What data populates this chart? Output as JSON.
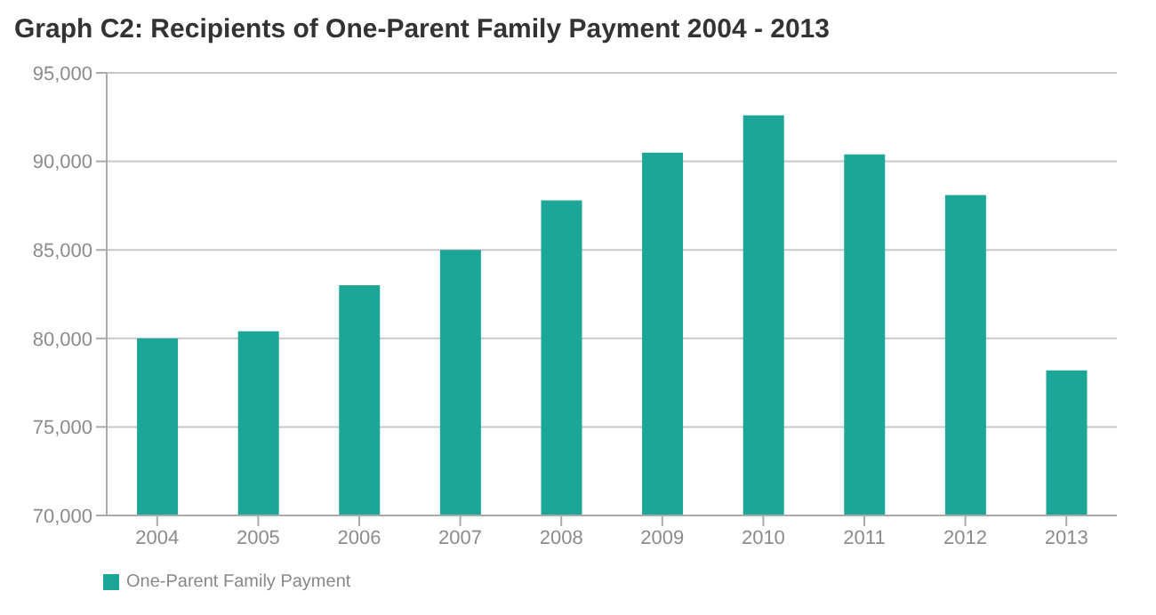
{
  "chart_data": {
    "type": "bar",
    "title": "Graph C2: Recipients of One-Parent Family Payment 2004 - 2013",
    "categories": [
      "2004",
      "2005",
      "2006",
      "2007",
      "2008",
      "2009",
      "2010",
      "2011",
      "2012",
      "2013"
    ],
    "series": [
      {
        "name": "One-Parent Family Payment",
        "color": "#1ba698",
        "values": [
          80000,
          80400,
          83000,
          85000,
          87800,
          90500,
          92600,
          90400,
          88100,
          78200
        ]
      }
    ],
    "ylim": [
      70000,
      95000
    ],
    "yticks": [
      {
        "value": 70000,
        "label": "70,000"
      },
      {
        "value": 75000,
        "label": "75,000"
      },
      {
        "value": 80000,
        "label": "80,000"
      },
      {
        "value": 85000,
        "label": "85,000"
      },
      {
        "value": 90000,
        "label": "90,000"
      },
      {
        "value": 95000,
        "label": "95,000"
      }
    ],
    "grid": "y",
    "legend": "bottom left"
  }
}
